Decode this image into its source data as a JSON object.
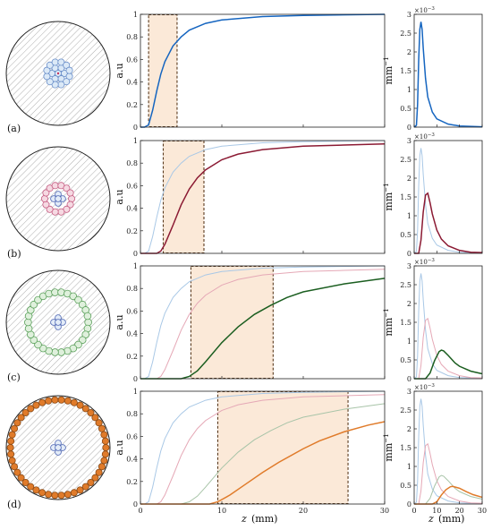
{
  "figure": {
    "x_label": "z",
    "x_unit": "(mm)",
    "mid_ylabel": "a.u",
    "right_ylabel": "mm",
    "right_ylabel_sup": "−1",
    "exponent_label": "×10",
    "exponent_sup": "−3",
    "row_labels": [
      "(a)",
      "(b)",
      "(c)",
      "(d)"
    ]
  },
  "colors": {
    "a": "#1565c0",
    "b": "#8b1a33",
    "c": "#1b5e20",
    "d": "#e07b2a",
    "a_faint": "#a9c8e6",
    "b_faint": "#e5a8b6",
    "c_faint": "#a8c4a8",
    "window_fill": "#fbe9d8",
    "window_stroke": "#5a3a1e"
  },
  "chart_data": [
    {
      "type": "line",
      "title": "",
      "xlabel": "z (mm)",
      "ylabel": "a.u",
      "xlim": [
        0,
        30
      ],
      "ylim": [
        0,
        1
      ],
      "x_ticks": [
        "0",
        "10",
        "20",
        "30"
      ],
      "y_ticks": [
        "0",
        "0.2",
        "0.4",
        "0.6",
        "0.8",
        "1"
      ],
      "grid": false,
      "series": [
        {
          "key": "a",
          "x": [
            0,
            0.5,
            1,
            1.5,
            2,
            2.5,
            3,
            4,
            5,
            6,
            8,
            10,
            15,
            20,
            30
          ],
          "y": [
            0,
            0,
            0.02,
            0.15,
            0.32,
            0.47,
            0.58,
            0.72,
            0.8,
            0.86,
            0.92,
            0.95,
            0.98,
            0.99,
            1.0
          ]
        },
        {
          "key": "b",
          "x": [
            0,
            2,
            2.5,
            3,
            4,
            5,
            6,
            7,
            8,
            10,
            12,
            15,
            20,
            25,
            30
          ],
          "y": [
            0,
            0,
            0.02,
            0.08,
            0.25,
            0.43,
            0.57,
            0.67,
            0.74,
            0.83,
            0.88,
            0.92,
            0.95,
            0.96,
            0.97
          ]
        },
        {
          "key": "c",
          "x": [
            0,
            5,
            6,
            7,
            8,
            10,
            12,
            14,
            16,
            18,
            20,
            25,
            30
          ],
          "y": [
            0,
            0,
            0.02,
            0.07,
            0.15,
            0.32,
            0.46,
            0.57,
            0.65,
            0.72,
            0.77,
            0.84,
            0.89
          ]
        },
        {
          "key": "d",
          "x": [
            0,
            8.5,
            9.5,
            11,
            13,
            15,
            17,
            20,
            22,
            25,
            28,
            30
          ],
          "y": [
            0,
            0,
            0.02,
            0.08,
            0.18,
            0.28,
            0.37,
            0.49,
            0.56,
            0.64,
            0.7,
            0.73
          ]
        }
      ],
      "panels": [
        {
          "row": "a",
          "show": [
            "a"
          ],
          "window": [
            1.0,
            4.5
          ]
        },
        {
          "row": "b",
          "show": [
            "a",
            "b"
          ],
          "window": [
            2.8,
            7.8
          ]
        },
        {
          "row": "c",
          "show": [
            "a",
            "b",
            "c"
          ],
          "window": [
            6.2,
            16.3
          ]
        },
        {
          "row": "d",
          "show": [
            "a",
            "b",
            "c",
            "d"
          ],
          "window": [
            9.5,
            25.5
          ],
          "x_tick_labels": true
        }
      ]
    },
    {
      "type": "line",
      "title": "",
      "xlabel": "z (mm)",
      "ylabel": "mm−1",
      "xlim": [
        0,
        30
      ],
      "ylim": [
        0,
        3
      ],
      "y_scale_note": "×10−3",
      "x_ticks": [
        "0",
        "10",
        "20",
        "30"
      ],
      "y_ticks": [
        "0",
        "0.5",
        "1",
        "1.5",
        "2",
        "2.5",
        "3"
      ],
      "series": [
        {
          "key": "a",
          "x": [
            0,
            1,
            1.5,
            2,
            2.5,
            3,
            3.5,
            4,
            5,
            6,
            8,
            10,
            15,
            20,
            30
          ],
          "y": [
            0,
            0.05,
            0.6,
            1.8,
            2.6,
            2.8,
            2.6,
            2.1,
            1.3,
            0.8,
            0.4,
            0.22,
            0.08,
            0.03,
            0.01
          ]
        },
        {
          "key": "b",
          "x": [
            0,
            2,
            3,
            4,
            5,
            6,
            7,
            8,
            10,
            12,
            15,
            20,
            25,
            30
          ],
          "y": [
            0,
            0,
            0.35,
            1.1,
            1.55,
            1.6,
            1.35,
            1.05,
            0.62,
            0.38,
            0.2,
            0.08,
            0.03,
            0.02
          ]
        },
        {
          "key": "c",
          "x": [
            0,
            5,
            7,
            9,
            11,
            12,
            13,
            15,
            18,
            20,
            25,
            30
          ],
          "y": [
            0,
            0,
            0.15,
            0.48,
            0.72,
            0.76,
            0.74,
            0.62,
            0.42,
            0.33,
            0.2,
            0.13
          ]
        },
        {
          "key": "d",
          "x": [
            0,
            8,
            10,
            12,
            14,
            16,
            17,
            20,
            23,
            26,
            30
          ],
          "y": [
            0,
            0,
            0.06,
            0.24,
            0.38,
            0.46,
            0.47,
            0.42,
            0.33,
            0.25,
            0.18
          ]
        }
      ],
      "panels": [
        {
          "row": "a",
          "show": [
            "a"
          ]
        },
        {
          "row": "b",
          "show": [
            "a",
            "b"
          ]
        },
        {
          "row": "c",
          "show": [
            "a",
            "b",
            "c"
          ]
        },
        {
          "row": "d",
          "show": [
            "a",
            "b",
            "c",
            "d"
          ],
          "x_tick_labels": true
        }
      ]
    }
  ],
  "schematic": [
    {
      "row": "a",
      "ring_count": 0,
      "core": "detailed"
    },
    {
      "row": "b",
      "ring_count": 14,
      "ring_radius_frac": 0.26,
      "core": "cross"
    },
    {
      "row": "c",
      "ring_count": 30,
      "ring_radius_frac": 0.58,
      "core": "cross"
    },
    {
      "row": "d",
      "ring_count": 46,
      "ring_radius_frac": 0.92,
      "core": "cross"
    }
  ]
}
